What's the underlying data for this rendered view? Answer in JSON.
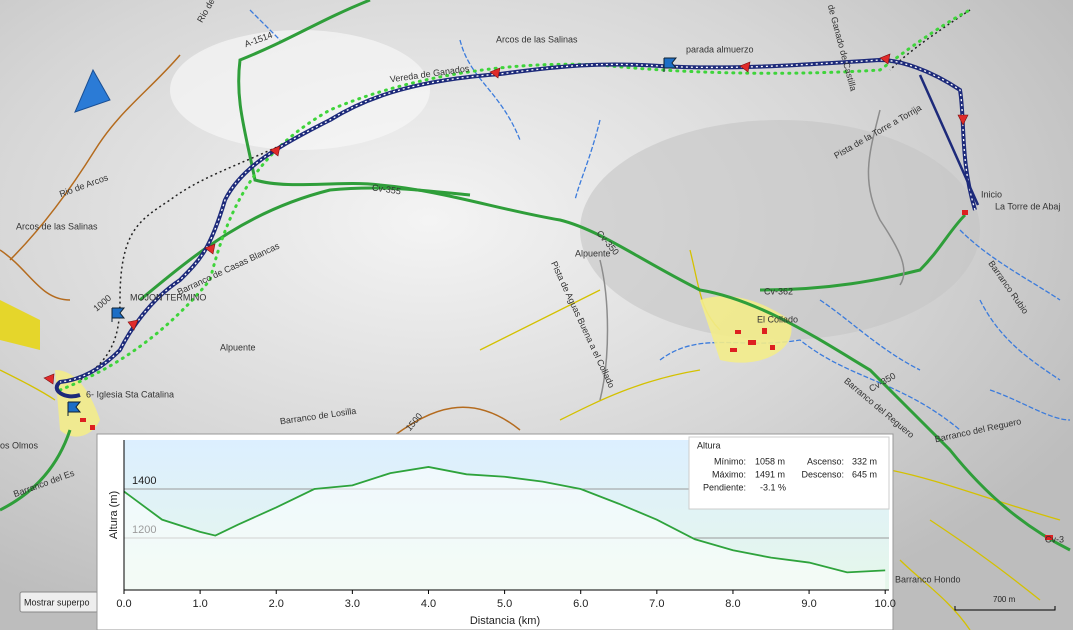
{
  "map_labels": {
    "rio_arcos_n": "Rio de Arcos",
    "a1514": "A-1514",
    "arcos_n": "Arcos de las Salinas",
    "vereda": "Vereda de Ganados",
    "parada": "parada almuerzo",
    "ganado_castilla": "de Ganado de Castilla",
    "pista_torre": "Pista de la Torre a Torrija",
    "inicio": "Inicio",
    "torre_abajo": "La Torre de Abaj",
    "rio_arcos_w": "Rio de Arcos",
    "arcos_w": "Arcos de las Salinas",
    "cv355": "Cv-355",
    "cv350_a": "Cv-350",
    "alpuente_a": "Alpuente",
    "pista_agua": "Pista de Aguas Buena a el Collado",
    "barranco_rubio": "Barranco Rubio",
    "cv362": "Cv-362",
    "collado": "El Collado",
    "casas_blancas": "Barranco de Casas Blancas",
    "c1000": "1000",
    "mojon": "MOJON TERMINO",
    "alpuente_b": "Alpuente",
    "iglesia": "6- Iglesia Sta Catalina",
    "losilla": "Barranco de Losilla",
    "c1500": "1500",
    "olmos": "os Olmos",
    "barranco_es": "Barranco del Es",
    "reguero_a": "Barranco del Reguero",
    "reguero_b": "Barranco del Reguero",
    "cv350_b": "Cv-350",
    "hondo": "Barranco Hondo",
    "cv_e": "Cv-3"
  },
  "button": "Mostrar superpo",
  "scale": "700 m",
  "stats": {
    "title": "Altura",
    "min_label": "Mínimo:",
    "min": "1058 m",
    "max_label": "Máximo:",
    "max": "1491 m",
    "slope_label": "Pendiente:",
    "slope": "-3.1 %",
    "asc_label": "Ascenso:",
    "asc": "332 m",
    "desc_label": "Descenso:",
    "desc": "645 m"
  },
  "chart_data": {
    "type": "line",
    "x_label": "Distancia  (km)",
    "y_label": "Altura (m)",
    "x": [
      0,
      0.5,
      1.0,
      1.2,
      1.5,
      2.0,
      2.5,
      3.0,
      3.5,
      4.0,
      4.5,
      5.0,
      5.5,
      6.0,
      6.5,
      7.0,
      7.5,
      8.0,
      8.5,
      9.0,
      9.5,
      10.0
    ],
    "values": [
      1390,
      1275,
      1225,
      1210,
      1255,
      1325,
      1400,
      1415,
      1465,
      1490,
      1460,
      1450,
      1430,
      1400,
      1340,
      1275,
      1195,
      1150,
      1120,
      1100,
      1060,
      1068
    ],
    "color": "#2ea33c",
    "xlim": [
      0,
      10.05
    ],
    "ylim": [
      988,
      1600
    ],
    "xticks": [
      {
        "value": 0,
        "label": "0.0"
      },
      {
        "value": 1,
        "label": "1.0"
      },
      {
        "value": 2,
        "label": "2.0"
      },
      {
        "value": 3,
        "label": "3.0"
      },
      {
        "value": 4,
        "label": "4.0"
      },
      {
        "value": 5,
        "label": "5.0"
      },
      {
        "value": 6,
        "label": "6.0"
      },
      {
        "value": 7,
        "label": "7.0"
      },
      {
        "value": 8,
        "label": "8.0"
      },
      {
        "value": 9,
        "label": "9.0"
      },
      {
        "value": 10,
        "label": "10.0"
      }
    ],
    "yticks": [
      1200,
      1400
    ],
    "grid": true
  }
}
